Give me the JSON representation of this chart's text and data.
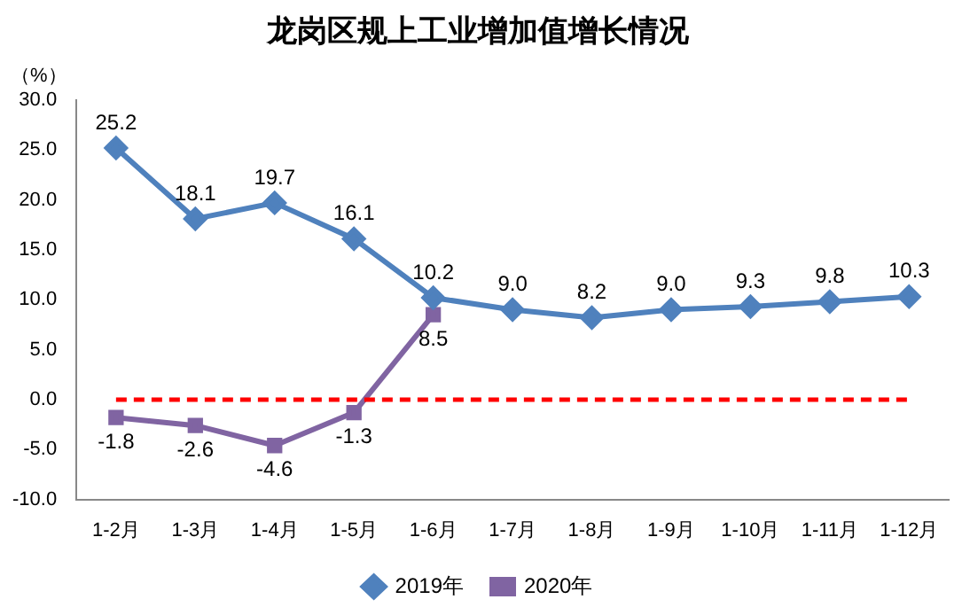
{
  "chart_data": {
    "type": "line",
    "title": "龙岗区规上工业增加值增长情况",
    "ylabel": "（%）",
    "categories": [
      "1-2月",
      "1-3月",
      "1-4月",
      "1-5月",
      "1-6月",
      "1-7月",
      "1-8月",
      "1-9月",
      "1-10月",
      "1-11月",
      "1-12月"
    ],
    "series": [
      {
        "name": "2019年",
        "color": "#4f81bd",
        "marker": "diamond",
        "values": [
          25.2,
          18.1,
          19.7,
          16.1,
          10.2,
          9.0,
          8.2,
          9.0,
          9.3,
          9.8,
          10.3
        ],
        "value_labels": [
          "25.2",
          "18.1",
          "19.7",
          "16.1",
          "10.2",
          "9.0",
          "8.2",
          "9.0",
          "9.3",
          "9.8",
          "10.3"
        ]
      },
      {
        "name": "2020年",
        "color": "#8064a2",
        "marker": "square",
        "values": [
          -1.8,
          -2.6,
          -4.6,
          -1.3,
          8.5,
          null,
          null,
          null,
          null,
          null,
          null
        ],
        "value_labels": [
          "-1.8",
          "-2.6",
          "-4.6",
          "-1.3",
          "8.5",
          null,
          null,
          null,
          null,
          null,
          null
        ]
      }
    ],
    "ylim": [
      -10,
      30
    ],
    "yticks": [
      {
        "value": -10,
        "label": "-10.0"
      },
      {
        "value": -5,
        "label": "-5.0"
      },
      {
        "value": 0,
        "label": "0.0"
      },
      {
        "value": 5,
        "label": "5.0"
      },
      {
        "value": 10,
        "label": "10.0"
      },
      {
        "value": 15,
        "label": "15.0"
      },
      {
        "value": 20,
        "label": "20.0"
      },
      {
        "value": 25,
        "label": "25.0"
      },
      {
        "value": 30,
        "label": "30.0"
      }
    ],
    "ref_lines": [
      {
        "axis": "y",
        "value": 0,
        "color": "#ff0000",
        "line_style": "dashed"
      }
    ],
    "grid": false,
    "legend": "bottom",
    "line_style": "solid"
  }
}
